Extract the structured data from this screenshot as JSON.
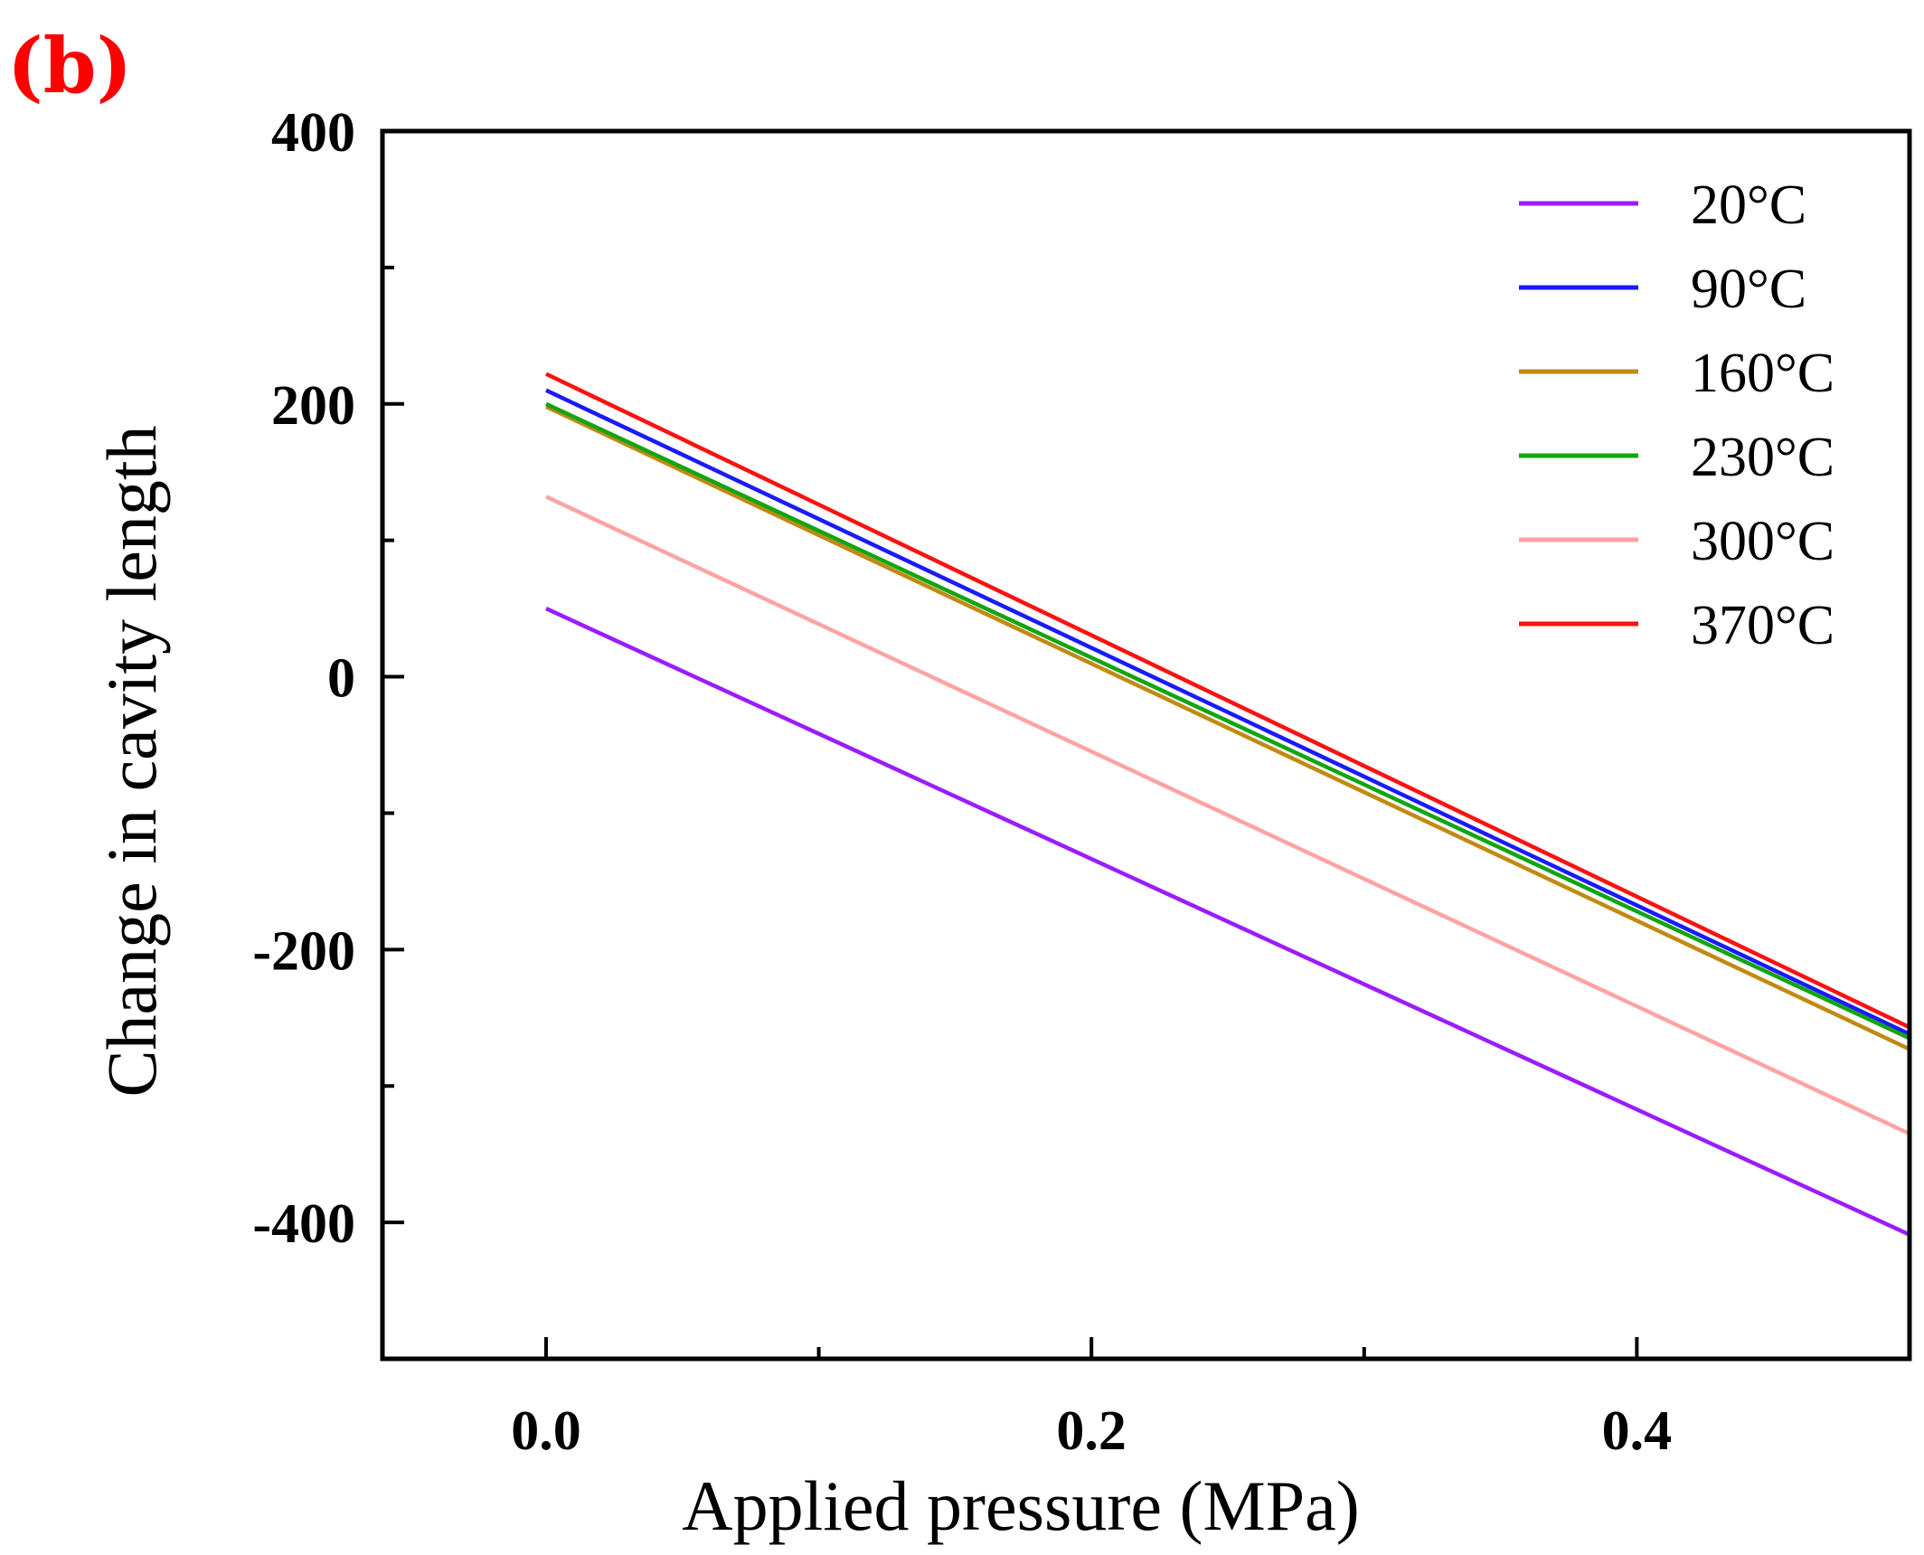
{
  "panel_label": "(b)",
  "chart_data": {
    "type": "line",
    "title": "",
    "xlabel": "Applied pressure (MPa)",
    "ylabel": "Change in cavity length",
    "xlim": [
      -0.06,
      0.5
    ],
    "ylim": [
      -500,
      400
    ],
    "xticks": [
      0.0,
      0.2,
      0.4
    ],
    "xtick_labels": [
      "0.0",
      "0.2",
      "0.4"
    ],
    "xminor": [
      0.1,
      0.3
    ],
    "yticks": [
      400,
      200,
      0,
      -200,
      -400
    ],
    "ytick_labels": [
      "400",
      "200",
      "0",
      "-200",
      "-400"
    ],
    "yminor": [
      300,
      100,
      -100,
      -300
    ],
    "grid": false,
    "legend_position": "top-right",
    "series": [
      {
        "name": "20°C",
        "color": "#9b1cff",
        "x": [
          0.0,
          0.5
        ],
        "y": [
          50,
          -409
        ]
      },
      {
        "name": "90°C",
        "color": "#1a1aff",
        "x": [
          0.0,
          0.5
        ],
        "y": [
          210,
          -262
        ]
      },
      {
        "name": "160°C",
        "color": "#c08a13",
        "x": [
          0.0,
          0.5
        ],
        "y": [
          198,
          -273
        ]
      },
      {
        "name": "230°C",
        "color": "#12a512",
        "x": [
          0.0,
          0.5
        ],
        "y": [
          200,
          -265
        ]
      },
      {
        "name": "300°C",
        "color": "#ffa3a3",
        "x": [
          0.0,
          0.5
        ],
        "y": [
          132,
          -335
        ]
      },
      {
        "name": "370°C",
        "color": "#ff1010",
        "x": [
          0.0,
          0.5
        ],
        "y": [
          222,
          -257
        ]
      }
    ]
  }
}
